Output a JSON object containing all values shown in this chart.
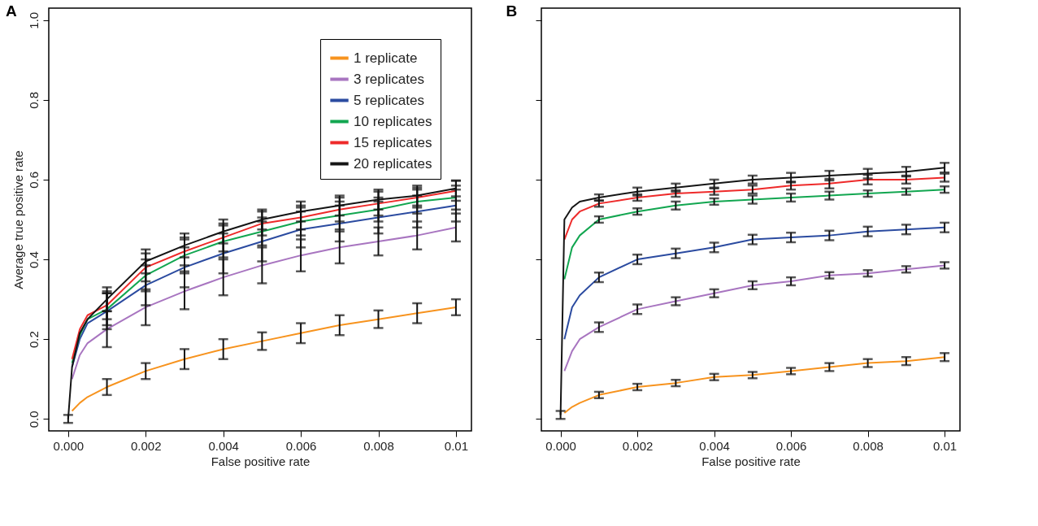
{
  "chart_data": [
    {
      "type": "line",
      "title": "A",
      "xlabel": "False positive rate",
      "ylabel": "Average true positive rate",
      "xlim": [
        -0.0005,
        0.0104
      ],
      "ylim": [
        -0.03,
        1.03
      ],
      "xticks": [
        {
          "value": 0,
          "label": "0.000"
        },
        {
          "value": 0.002,
          "label": "0.002"
        },
        {
          "value": 0.004,
          "label": "0.004"
        },
        {
          "value": 0.006,
          "label": "0.006"
        },
        {
          "value": 0.008,
          "label": "0.008"
        },
        0.01
      ],
      "yticks": [
        {
          "value": 0,
          "label": "0.0"
        },
        {
          "value": 0.2,
          "label": "0.2"
        },
        {
          "value": 0.4,
          "label": "0.4"
        },
        {
          "value": 0.6,
          "label": "0.6"
        },
        {
          "value": 0.8,
          "label": "0.8"
        },
        {
          "value": 1,
          "label": "1.0"
        }
      ],
      "grid": false,
      "legend": "top right",
      "x": [
        0,
        0.0001,
        0.0003,
        0.0005,
        0.001,
        0.002,
        0.003,
        0.004,
        0.005,
        0.006,
        0.007,
        0.008,
        0.009,
        0.01
      ],
      "series": [
        {
          "name": "1 replicate",
          "color": "#f7931e",
          "values": [
            null,
            0.02,
            0.04,
            0.055,
            0.08,
            0.12,
            0.15,
            0.175,
            0.195,
            0.215,
            0.235,
            0.25,
            0.265,
            0.28
          ],
          "errors": [
            null,
            null,
            null,
            null,
            0.02,
            0.02,
            0.025,
            0.025,
            0.022,
            0.025,
            0.025,
            0.022,
            0.025,
            0.02
          ]
        },
        {
          "name": "3 replicates",
          "color": "#a875c0",
          "values": [
            null,
            0.1,
            0.16,
            0.19,
            0.225,
            0.28,
            0.32,
            0.355,
            0.385,
            0.41,
            0.43,
            0.445,
            0.46,
            0.48
          ],
          "errors": [
            null,
            null,
            null,
            null,
            0.045,
            0.045,
            0.045,
            0.045,
            0.045,
            0.04,
            0.04,
            0.035,
            0.035,
            0.035
          ]
        },
        {
          "name": "5 replicates",
          "color": "#2b4ba0",
          "values": [
            null,
            0.13,
            0.2,
            0.24,
            0.27,
            0.335,
            0.38,
            0.415,
            0.445,
            0.475,
            0.49,
            0.505,
            0.52,
            0.535
          ],
          "errors": [
            null,
            null,
            null,
            null,
            0.045,
            0.05,
            0.05,
            0.05,
            0.05,
            0.045,
            0.045,
            0.04,
            0.04,
            0.04
          ]
        },
        {
          "name": "10 replicates",
          "color": "#12a650",
          "values": [
            null,
            0.14,
            0.21,
            0.25,
            0.275,
            0.36,
            0.41,
            0.445,
            0.47,
            0.495,
            0.51,
            0.525,
            0.545,
            0.555
          ],
          "errors": [
            null,
            null,
            null,
            null,
            0.04,
            0.04,
            0.04,
            0.04,
            0.035,
            0.035,
            0.035,
            0.03,
            0.03,
            0.03
          ]
        },
        {
          "name": "15 replicates",
          "color": "#ee2a2a",
          "values": [
            null,
            0.15,
            0.225,
            0.26,
            0.285,
            0.38,
            0.42,
            0.455,
            0.49,
            0.505,
            0.525,
            0.54,
            0.555,
            0.572
          ],
          "errors": [
            null,
            null,
            null,
            null,
            0.035,
            0.035,
            0.035,
            0.035,
            0.03,
            0.03,
            0.03,
            0.03,
            0.025,
            0.025
          ]
        },
        {
          "name": "20 replicates",
          "color": "#151515",
          "values": [
            0,
            0.13,
            0.215,
            0.25,
            0.3,
            0.395,
            0.435,
            0.47,
            0.5,
            0.52,
            0.535,
            0.55,
            0.56,
            0.578
          ],
          "errors": [
            0.01,
            null,
            null,
            null,
            0.03,
            0.03,
            0.03,
            0.03,
            0.025,
            0.025,
            0.025,
            0.025,
            0.025,
            0.02
          ]
        }
      ]
    },
    {
      "type": "line",
      "title": "B",
      "xlabel": "False positive rate",
      "xlim": [
        -0.0005,
        0.0104
      ],
      "ylim": [
        -0.03,
        1.03
      ],
      "xticks": [
        {
          "value": 0,
          "label": "0.000"
        },
        {
          "value": 0.002,
          "label": "0.002"
        },
        {
          "value": 0.004,
          "label": "0.004"
        },
        {
          "value": 0.006,
          "label": "0.006"
        },
        {
          "value": 0.008,
          "label": "0.008"
        },
        0.01
      ],
      "yticks": [
        0,
        0.2,
        0.4,
        0.6,
        0.8,
        1
      ],
      "tick_labels": "x",
      "grid": false,
      "x": [
        0,
        0.0001,
        0.0003,
        0.0005,
        0.001,
        0.002,
        0.003,
        0.004,
        0.005,
        0.006,
        0.007,
        0.008,
        0.009,
        0.01
      ],
      "series": [
        {
          "color": "#f7931e",
          "values": [
            null,
            0.015,
            0.03,
            0.04,
            0.06,
            0.08,
            0.09,
            0.105,
            0.11,
            0.12,
            0.13,
            0.14,
            0.145,
            0.155
          ],
          "errors": [
            null,
            null,
            null,
            null,
            0.008,
            0.008,
            0.008,
            0.008,
            0.008,
            0.008,
            0.01,
            0.01,
            0.01,
            0.01
          ]
        },
        {
          "color": "#a875c0",
          "values": [
            null,
            0.12,
            0.17,
            0.2,
            0.23,
            0.275,
            0.295,
            0.315,
            0.335,
            0.345,
            0.36,
            0.365,
            0.375,
            0.385
          ],
          "errors": [
            null,
            null,
            null,
            null,
            0.012,
            0.012,
            0.01,
            0.01,
            0.01,
            0.01,
            0.008,
            0.008,
            0.008,
            0.008
          ]
        },
        {
          "color": "#2b4ba0",
          "values": [
            null,
            0.2,
            0.28,
            0.31,
            0.355,
            0.4,
            0.415,
            0.43,
            0.45,
            0.455,
            0.46,
            0.47,
            0.475,
            0.48
          ],
          "errors": [
            null,
            null,
            null,
            null,
            0.012,
            0.012,
            0.012,
            0.012,
            0.012,
            0.012,
            0.012,
            0.012,
            0.012,
            0.012
          ]
        },
        {
          "color": "#12a650",
          "values": [
            null,
            0.35,
            0.43,
            0.46,
            0.5,
            0.52,
            0.535,
            0.545,
            0.55,
            0.555,
            0.56,
            0.565,
            0.57,
            0.575
          ],
          "errors": [
            null,
            null,
            null,
            null,
            0.008,
            0.008,
            0.01,
            0.008,
            0.01,
            0.01,
            0.01,
            0.008,
            0.008,
            0.008
          ]
        },
        {
          "color": "#ee2a2a",
          "values": [
            null,
            0.45,
            0.5,
            0.52,
            0.54,
            0.555,
            0.565,
            0.57,
            0.575,
            0.585,
            0.59,
            0.6,
            0.6,
            0.605
          ],
          "errors": [
            null,
            null,
            null,
            null,
            0.008,
            0.008,
            0.008,
            0.008,
            0.01,
            0.01,
            0.012,
            0.012,
            0.01,
            0.01
          ]
        },
        {
          "color": "#151515",
          "values": [
            0.01,
            0.5,
            0.53,
            0.545,
            0.555,
            0.57,
            0.58,
            0.59,
            0.6,
            0.605,
            0.61,
            0.615,
            0.62,
            0.63
          ],
          "errors": [
            0.01,
            null,
            null,
            null,
            0.008,
            0.01,
            0.01,
            0.01,
            0.01,
            0.012,
            0.012,
            0.012,
            0.012,
            0.012
          ]
        }
      ]
    }
  ]
}
